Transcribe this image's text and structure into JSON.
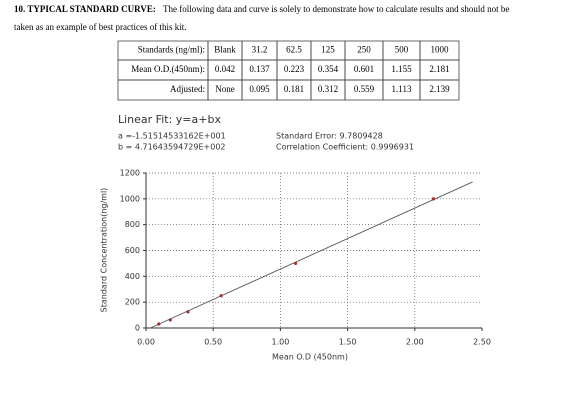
{
  "header": {
    "title": "10. TYPICAL STANDARD CURVE:",
    "text": "The following data and curve is solely to demonstrate how to calculate results and should not be",
    "text2": "taken as an example of best practices of this kit."
  },
  "table": {
    "rows": [
      [
        "Standards (ng/ml):",
        "Blank",
        "31.2",
        "62.5",
        "125",
        "250",
        "500",
        "1000"
      ],
      [
        "Mean O.D.(450nm):",
        "0.042",
        "0.137",
        "0.223",
        "0.354",
        "0.601",
        "1.155",
        "2.181"
      ],
      [
        "Adjusted:",
        "None",
        "0.095",
        "0.181",
        "0.312",
        "0.559",
        "1.113",
        "2.139"
      ]
    ]
  },
  "fit": {
    "title": "Linear Fit: y=a+bx",
    "a": "a =-1.51514533162E+001",
    "b": "b = 4.71643594729E+002",
    "error": "Standard Error: 9.7809428",
    "correlation": "Correlation Coefficient: 0.9996931"
  },
  "chart_data": {
    "type": "scatter",
    "x_label": "Mean O.D (450nm)",
    "y_label": "Standard Concentration(ng/ml)",
    "series": [
      {
        "type": "scatter",
        "color": "#a03030",
        "x": [
          0.095,
          0.181,
          0.312,
          0.559,
          1.113,
          2.139
        ],
        "values": [
          31.2,
          62.5,
          125,
          250,
          500,
          1000
        ]
      },
      {
        "type": "line",
        "color": "#555555",
        "x": [
          0.032,
          2.43
        ],
        "values": [
          0,
          1131
        ]
      }
    ],
    "xlim": [
      0,
      2.5
    ],
    "xticks": [
      {
        "value": 0,
        "label": "0.00"
      },
      {
        "value": 0.5,
        "label": "0.50"
      },
      {
        "value": 1,
        "label": "1.00"
      },
      {
        "value": 1.5,
        "label": "1.50"
      },
      {
        "value": 2,
        "label": "2.00"
      },
      {
        "value": 2.5,
        "label": "2.50"
      }
    ],
    "ylim": [
      0,
      1200
    ],
    "yticks": [
      0,
      200,
      400,
      600,
      800,
      1000,
      1200
    ],
    "grid": true
  }
}
